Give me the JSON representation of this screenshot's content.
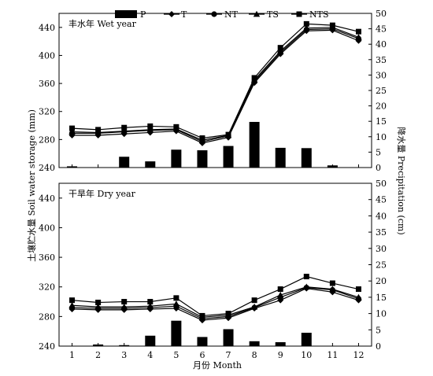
{
  "chart_data": {
    "type": "bar+line",
    "xlabel": "月份 Month",
    "ylabel_left": "土壤贮水量 Soil water storage (mm)",
    "ylabel_right": "降水量 Precipitation (cm)",
    "x": [
      1,
      2,
      3,
      4,
      5,
      6,
      7,
      8,
      9,
      10,
      11,
      12
    ],
    "legend": [
      {
        "name": "P",
        "marker": "bar"
      },
      {
        "name": "T",
        "marker": "diamond"
      },
      {
        "name": "NT",
        "marker": "circle"
      },
      {
        "name": "TS",
        "marker": "triangle"
      },
      {
        "name": "NTS",
        "marker": "square"
      }
    ],
    "legend_position": "top",
    "panels": [
      {
        "title": "丰水年 Wet year",
        "ylim_left": [
          240,
          460
        ],
        "yticks_left": [
          240,
          280,
          320,
          360,
          400,
          440
        ],
        "ylim_right": [
          0,
          50
        ],
        "yticks_right": [
          0,
          5,
          10,
          15,
          20,
          25,
          30,
          35,
          40,
          45,
          50
        ],
        "precipitation": [
          0.4,
          0,
          3.5,
          2.0,
          5.8,
          5.6,
          7.0,
          14.8,
          6.4,
          6.3,
          0.7,
          0
        ],
        "series": [
          {
            "name": "T",
            "values": [
              286,
              286,
              288,
              290,
              292,
              275,
              283,
              361,
              402,
              435,
              436,
              421
            ]
          },
          {
            "name": "NT",
            "values": [
              289,
              289,
              291,
              293,
              294,
              277,
              285,
              363,
              404,
              437,
              438,
              424
            ]
          },
          {
            "name": "TS",
            "values": [
              291,
              290,
              292,
              294,
              295,
              279,
              286,
              365,
              406,
              439,
              440,
              426
            ]
          },
          {
            "name": "NTS",
            "values": [
              296,
              294,
              297,
              299,
              298,
              282,
              287,
              368,
              411,
              445,
              443,
              434
            ]
          }
        ]
      },
      {
        "title": "干旱年 Dry year",
        "ylim_left": [
          240,
          460
        ],
        "yticks_left": [
          240,
          280,
          320,
          360,
          400,
          440
        ],
        "ylim_right": [
          0,
          50
        ],
        "yticks_right": [
          0,
          5,
          10,
          15,
          20,
          25,
          30,
          35,
          40,
          45,
          50
        ],
        "precipitation": [
          0,
          0.5,
          0.3,
          3.2,
          7.8,
          2.8,
          5.2,
          1.5,
          1.2,
          4.1,
          0,
          0
        ],
        "series": [
          {
            "name": "T",
            "values": [
              290,
              289,
              289,
              290,
              291,
              275,
              278,
              291,
              302,
              318,
              313,
              302
            ]
          },
          {
            "name": "NT",
            "values": [
              292,
              291,
              291,
              292,
              294,
              277,
              280,
              292,
              306,
              319,
              316,
              304
            ]
          },
          {
            "name": "TS",
            "values": [
              295,
              293,
              293,
              294,
              297,
              279,
              282,
              293,
              309,
              320,
              317,
              306
            ]
          },
          {
            "name": "NTS",
            "values": [
              302,
              299,
              300,
              300,
              305,
              281,
              284,
              302,
              317,
              334,
              325,
              317
            ]
          }
        ]
      }
    ]
  }
}
